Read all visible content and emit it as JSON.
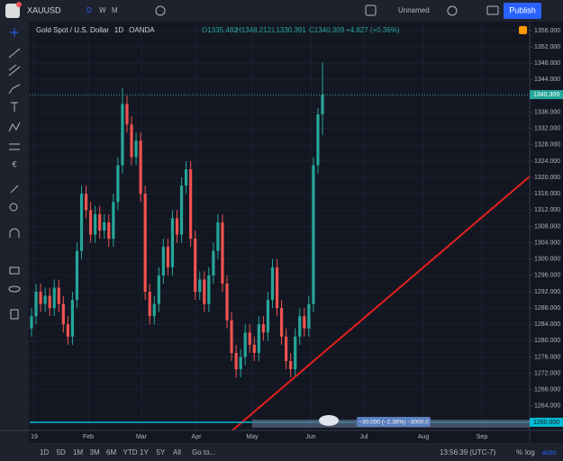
{
  "ui": {
    "symbol": "XAUUSD",
    "intervals": [
      "D",
      "W",
      "M"
    ],
    "layout_name": "Unnamed",
    "publish": "Publish",
    "legend": {
      "name": "Gold Spot / U.S. Dollar",
      "interval": "1D",
      "source": "OANDA",
      "open": "O1335.482",
      "high": "H1348.212",
      "low": "L1330.391",
      "close": "C1340.309",
      "change": "+4.827 (+0.36%)"
    },
    "last_price_label": "1340.309",
    "line_label": "1260.000",
    "measure_label": "−30.000 (−2.38%) −3000.0",
    "ranges": [
      "1D",
      "5D",
      "1M",
      "3M",
      "6M",
      "YTD",
      "1Y",
      "5Y",
      "All"
    ],
    "goto": "Go to...",
    "clock": "13:56:39 (UTC-7)",
    "scale_options": [
      "%",
      "log",
      "auto"
    ],
    "months": [
      "19",
      "Feb",
      "Mar",
      "Apr",
      "May",
      "Jun",
      "Jul",
      "Aug",
      "Sep"
    ]
  },
  "chart_data": {
    "type": "candlestick",
    "up_color": "#26a69a",
    "down_color": "#ef5350",
    "open": [
      1283,
      1286,
      1292,
      1289,
      1291,
      1288,
      1293,
      1289,
      1284,
      1281,
      1290,
      1302,
      1316,
      1312,
      1306,
      1311,
      1307,
      1309,
      1305,
      1314,
      1323,
      1338,
      1333,
      1325,
      1329,
      1316,
      1292,
      1286,
      1289,
      1296,
      1303,
      1298,
      1310,
      1306,
      1318,
      1322,
      1305,
      1292,
      1295,
      1289,
      1296,
      1302,
      1309,
      1294,
      1285,
      1277,
      1273,
      1276,
      1282,
      1279,
      1277,
      1284,
      1282,
      1290,
      1298,
      1288,
      1281,
      1275,
      1273,
      1281,
      1286,
      1283,
      1289,
      1323,
      1335.482
    ],
    "high": [
      1288,
      1294,
      1294,
      1293,
      1293,
      1295,
      1295,
      1291,
      1286,
      1292,
      1304,
      1318,
      1318,
      1314,
      1313,
      1313,
      1311,
      1311,
      1316,
      1325,
      1342,
      1340,
      1335,
      1331,
      1331,
      1318,
      1294,
      1291,
      1298,
      1305,
      1305,
      1312,
      1312,
      1320,
      1324,
      1324,
      1307,
      1297,
      1297,
      1298,
      1304,
      1311,
      1311,
      1296,
      1287,
      1279,
      1278,
      1284,
      1284,
      1281,
      1286,
      1286,
      1292,
      1300,
      1300,
      1290,
      1283,
      1277,
      1283,
      1288,
      1288,
      1291,
      1325,
      1337,
      1348.212
    ],
    "low": [
      1281,
      1284,
      1287,
      1287,
      1286,
      1286,
      1287,
      1282,
      1279,
      1279,
      1288,
      1300,
      1310,
      1304,
      1304,
      1305,
      1305,
      1303,
      1303,
      1312,
      1321,
      1331,
      1323,
      1323,
      1314,
      1290,
      1284,
      1284,
      1287,
      1294,
      1296,
      1296,
      1304,
      1304,
      1316,
      1303,
      1290,
      1290,
      1287,
      1287,
      1294,
      1300,
      1292,
      1283,
      1275,
      1271,
      1271,
      1274,
      1277,
      1275,
      1275,
      1280,
      1280,
      1288,
      1286,
      1279,
      1273,
      1271,
      1271,
      1279,
      1281,
      1281,
      1287,
      1321,
      1330.391
    ],
    "close": [
      1286,
      1292,
      1289,
      1291,
      1288,
      1293,
      1289,
      1284,
      1281,
      1290,
      1302,
      1316,
      1312,
      1306,
      1311,
      1307,
      1309,
      1305,
      1314,
      1323,
      1338,
      1333,
      1325,
      1329,
      1316,
      1292,
      1286,
      1289,
      1296,
      1303,
      1298,
      1310,
      1306,
      1318,
      1322,
      1305,
      1292,
      1295,
      1289,
      1296,
      1302,
      1309,
      1294,
      1285,
      1277,
      1273,
      1276,
      1282,
      1279,
      1277,
      1284,
      1282,
      1290,
      1298,
      1288,
      1281,
      1275,
      1273,
      1281,
      1286,
      1283,
      1289,
      1323,
      1335.482,
      1340.309
    ],
    "last_price": 1340.309,
    "hline": 1260,
    "ylim": [
      1260,
      1356
    ],
    "yticks": [
      {
        "value": 1356,
        "label": "1356.000"
      },
      {
        "value": 1352,
        "label": "1352.000"
      },
      {
        "value": 1348,
        "label": "1348.000"
      },
      {
        "value": 1344,
        "label": "1344.000"
      },
      {
        "value": 1340,
        "label": "1340.000"
      },
      {
        "value": 1336,
        "label": "1336.000"
      },
      {
        "value": 1332,
        "label": "1332.000"
      },
      {
        "value": 1328,
        "label": "1328.000"
      },
      {
        "value": 1324,
        "label": "1324.000"
      },
      {
        "value": 1320,
        "label": "1320.000"
      },
      {
        "value": 1316,
        "label": "1316.000"
      },
      {
        "value": 1312,
        "label": "1312.000"
      },
      {
        "value": 1308,
        "label": "1308.000"
      },
      {
        "value": 1304,
        "label": "1304.000"
      },
      {
        "value": 1300,
        "label": "1300.000"
      },
      {
        "value": 1296,
        "label": "1296.000"
      },
      {
        "value": 1292,
        "label": "1292.000"
      },
      {
        "value": 1288,
        "label": "1288.000"
      },
      {
        "value": 1284,
        "label": "1284.000"
      },
      {
        "value": 1280,
        "label": "1280.000"
      },
      {
        "value": 1276,
        "label": "1276.000"
      },
      {
        "value": 1272,
        "label": "1272.000"
      },
      {
        "value": 1268,
        "label": "1268.000"
      },
      {
        "value": 1264,
        "label": "1264.000"
      },
      {
        "value": 1260,
        "label": "1260.000"
      }
    ]
  }
}
